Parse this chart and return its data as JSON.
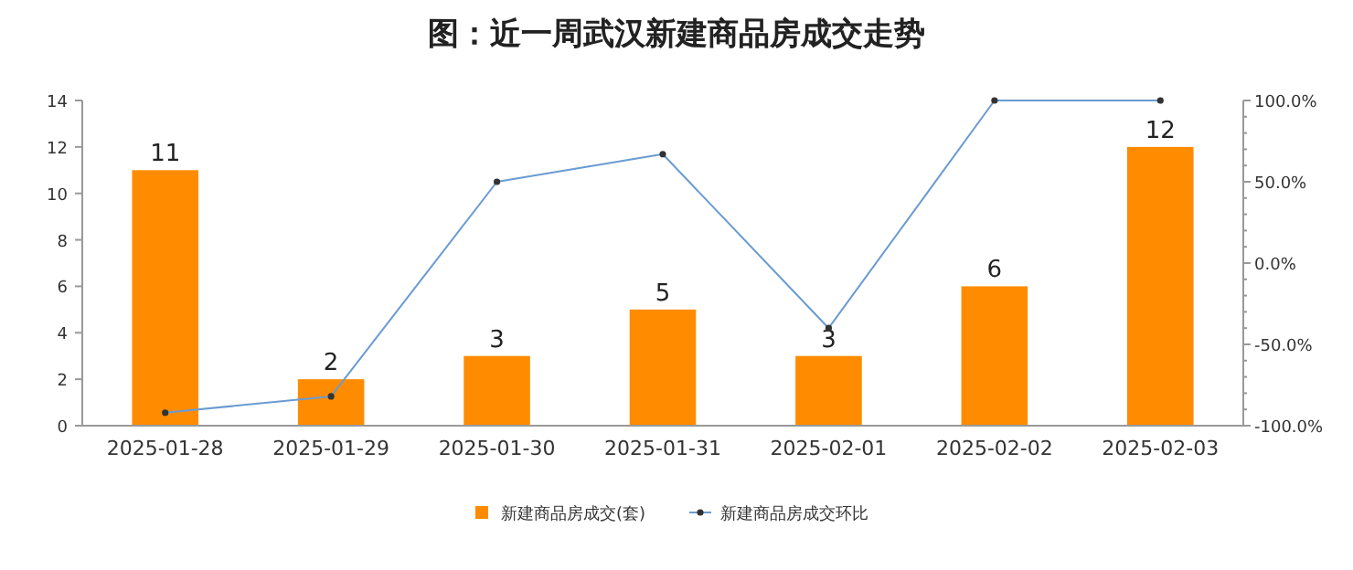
{
  "chart_data": {
    "type": "bar",
    "title": "图：近一周武汉新建商品房成交走势",
    "categories": [
      "2025-01-28",
      "2025-01-29",
      "2025-01-30",
      "2025-01-31",
      "2025-02-01",
      "2025-02-02",
      "2025-02-03"
    ],
    "series": [
      {
        "name": "新建商品房成交(套)",
        "color": "#ff8c00",
        "values": [
          11,
          2,
          3,
          5,
          3,
          6,
          12
        ],
        "value_labels": [
          "11",
          "2",
          "3",
          "5",
          "3",
          "6",
          "12"
        ]
      },
      {
        "name": "新建商品房成交环比",
        "type": "line",
        "axis": "y2",
        "color": "#6a9bd1",
        "values": [
          -92,
          -82,
          50,
          67,
          -40,
          100,
          100
        ],
        "marker": "circle"
      }
    ],
    "ylim": [
      0,
      14
    ],
    "yticks": [
      0,
      2,
      4,
      6,
      8,
      10,
      12,
      14
    ],
    "y2lim": [
      -100,
      100
    ],
    "y2ticks": [
      {
        "value": -100,
        "label": "-100.0%"
      },
      {
        "value": -50,
        "label": "-50.0%"
      },
      {
        "value": 0,
        "label": "0.0%"
      },
      {
        "value": 50,
        "label": "50.0%"
      },
      {
        "value": 100,
        "label": "100.0%"
      }
    ],
    "legend": "bottom",
    "grid": false
  }
}
